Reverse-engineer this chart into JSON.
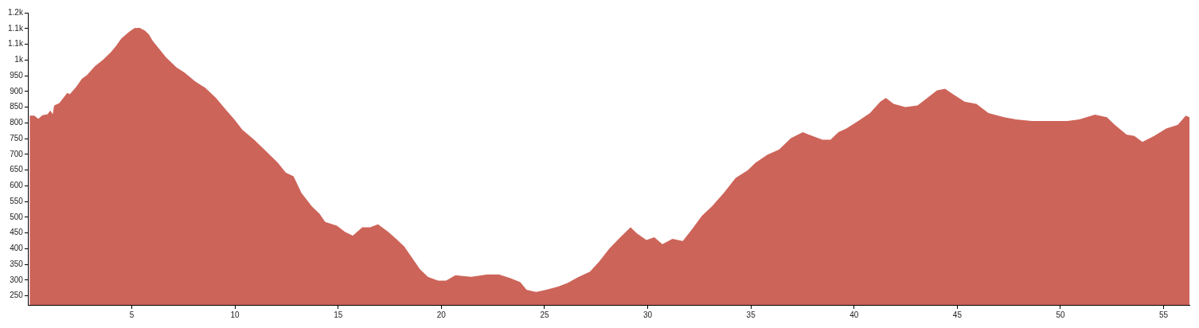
{
  "chart_data": {
    "type": "area",
    "color": "#cd6459",
    "grid": false,
    "legend": false,
    "xlim": [
      0,
      56.25
    ],
    "xticks": [
      5,
      10,
      15,
      20,
      25,
      30,
      35,
      40,
      45,
      50,
      55
    ],
    "ylim": [
      221,
      1150
    ],
    "yticks": [
      250,
      300,
      350,
      400,
      450,
      500,
      550,
      600,
      650,
      700,
      750,
      800,
      850,
      900,
      950,
      {
        "value": 1000,
        "label": "1k"
      },
      {
        "value": 1050,
        "label": "1.1k"
      },
      {
        "value": 1100,
        "label": "1.1k"
      },
      {
        "value": 1150,
        "label": "1.2k"
      }
    ],
    "x": [
      0.05,
      0.28,
      0.47,
      0.67,
      0.92,
      1.05,
      1.17,
      1.24,
      1.49,
      1.87,
      2.0,
      2.32,
      2.58,
      2.83,
      3.21,
      3.6,
      3.98,
      4.23,
      4.49,
      4.87,
      5.13,
      5.38,
      5.64,
      5.83,
      6.02,
      6.27,
      6.66,
      7.17,
      7.55,
      8.06,
      8.57,
      9.08,
      9.59,
      9.97,
      10.36,
      10.93,
      11.5,
      12.08,
      12.46,
      12.84,
      13.22,
      13.72,
      14.1,
      14.37,
      14.94,
      15.33,
      15.71,
      16.17,
      16.55,
      16.93,
      17.43,
      17.81,
      18.2,
      18.58,
      18.96,
      19.35,
      19.84,
      20.23,
      20.68,
      21.45,
      22.22,
      22.79,
      23.36,
      23.83,
      24.13,
      24.59,
      25.08,
      25.66,
      26.13,
      26.62,
      27.2,
      27.65,
      28.14,
      28.71,
      29.17,
      29.48,
      29.94,
      30.32,
      30.71,
      31.2,
      31.7,
      32.16,
      32.62,
      33.12,
      33.69,
      34.26,
      34.84,
      35.22,
      35.79,
      36.37,
      36.94,
      37.52,
      37.98,
      38.47,
      38.86,
      39.24,
      39.62,
      40.2,
      40.77,
      41.27,
      41.54,
      41.92,
      42.49,
      43.07,
      43.45,
      44.02,
      44.41,
      44.79,
      45.36,
      45.93,
      46.51,
      47.27,
      47.84,
      48.61,
      49.38,
      50.33,
      50.91,
      51.67,
      52.25,
      52.63,
      53.2,
      53.58,
      53.97,
      54.54,
      55.12,
      55.69,
      56.07,
      56.25
    ],
    "values": [
      823,
      823,
      813,
      824,
      827,
      839,
      827,
      855,
      863,
      895,
      891,
      915,
      940,
      952,
      980,
      1000,
      1024,
      1044,
      1068,
      1089,
      1101,
      1102,
      1093,
      1081,
      1060,
      1040,
      1008,
      976,
      960,
      932,
      911,
      879,
      839,
      811,
      778,
      746,
      710,
      673,
      642,
      630,
      577,
      535,
      511,
      485,
      473,
      453,
      441,
      468,
      468,
      477,
      453,
      431,
      407,
      371,
      335,
      310,
      298,
      298,
      315,
      310,
      318,
      318,
      306,
      293,
      269,
      262,
      269,
      279,
      291,
      309,
      327,
      359,
      400,
      439,
      468,
      448,
      427,
      436,
      414,
      431,
      424,
      463,
      504,
      535,
      577,
      625,
      649,
      673,
      698,
      715,
      751,
      770,
      758,
      746,
      746,
      770,
      782,
      806,
      831,
      867,
      879,
      860,
      850,
      855,
      874,
      903,
      908,
      891,
      867,
      860,
      831,
      818,
      811,
      806,
      806,
      806,
      811,
      826,
      818,
      794,
      763,
      758,
      739,
      758,
      782,
      794,
      823,
      818
    ]
  }
}
